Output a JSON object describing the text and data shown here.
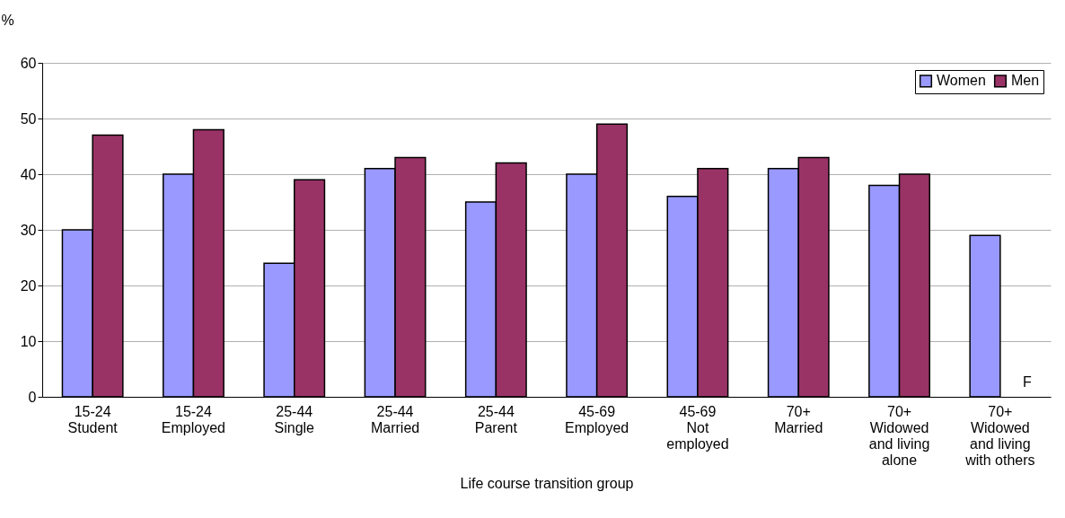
{
  "chart_data": {
    "type": "bar",
    "ylabel": "%",
    "xlabel": "Life course transition group",
    "categories": [
      "15-24\nStudent",
      "15-24\nEmployed",
      "25-44\nSingle",
      "25-44\nMarried",
      "25-44\nParent",
      "45-69\nEmployed",
      "45-69\nNot\nemployed",
      "70+\nMarried",
      "70+\nWidowed\nand living\nalone",
      "70+\nWidowed\nand living\nwith others"
    ],
    "series": [
      {
        "name": "Women",
        "color": "#9999ff",
        "values": [
          30,
          40,
          24,
          41,
          35,
          40,
          36,
          41,
          38,
          29
        ]
      },
      {
        "name": "Men",
        "color": "#993366",
        "values": [
          47,
          48,
          39,
          43,
          42,
          49,
          41,
          43,
          40,
          null
        ]
      }
    ],
    "ylim": [
      0,
      60
    ],
    "yticks": [
      0,
      10,
      20,
      30,
      40,
      50,
      60
    ],
    "grid": "y",
    "legend": "top right",
    "annotations": [
      {
        "text": "F",
        "x": "70+\nWidowed\nand living\nwith others",
        "y": 0
      }
    ]
  }
}
